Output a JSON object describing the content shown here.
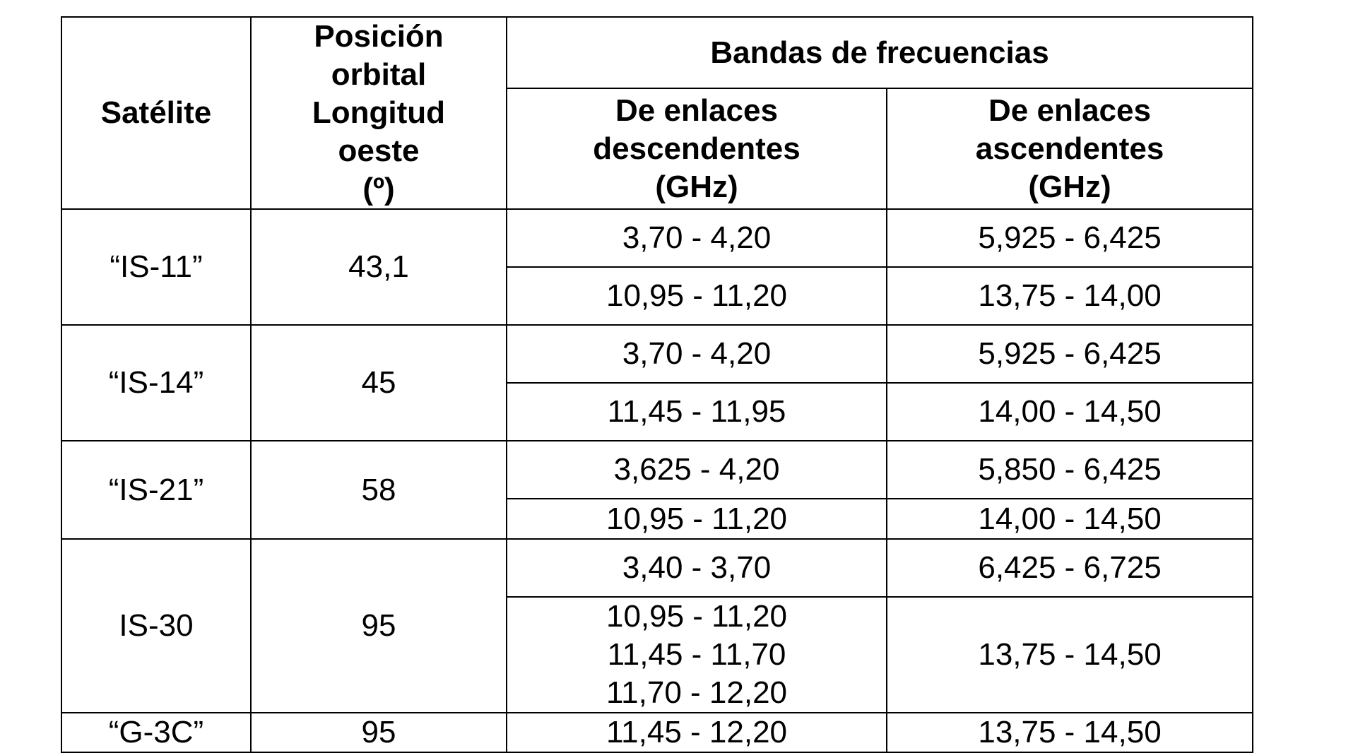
{
  "headers": {
    "satellite": "Satélite",
    "position": "Posición\norbital\nLongitud\noeste\n(º)",
    "bands": "Bandas de frecuencias",
    "downlink": "De enlaces\ndescendentes\n(GHz)",
    "uplink": "De enlaces\nascendentes\n(GHz)"
  },
  "rows": [
    {
      "satellite": "“IS-11”",
      "position": "43,1",
      "bands": [
        {
          "down": "3,70 - 4,20",
          "up": "5,925 - 6,425"
        },
        {
          "down": "10,95 - 11,20",
          "up": "13,75 - 14,00"
        }
      ]
    },
    {
      "satellite": "“IS-14”",
      "position": "45",
      "bands": [
        {
          "down": "3,70 - 4,20",
          "up": "5,925 - 6,425"
        },
        {
          "down": "11,45 - 11,95",
          "up": "14,00 - 14,50"
        }
      ]
    },
    {
      "satellite": "“IS-21”",
      "position": "58",
      "bands": [
        {
          "down": "3,625 - 4,20",
          "up": "5,850 - 6,425"
        },
        {
          "down": "10,95 - 11,20",
          "up": "14,00 - 14,50"
        }
      ]
    },
    {
      "satellite": "IS-30",
      "position": "95",
      "bands": [
        {
          "down": "3,40 - 3,70",
          "up": "6,425 - 6,725"
        },
        {
          "down": "10,95 - 11,20\n11,45 - 11,70\n11,70 - 12,20",
          "up": "13,75 - 14,50"
        }
      ]
    },
    {
      "satellite": "“G-3C”",
      "position": "95",
      "bands": [
        {
          "down": "11,45 - 12,20",
          "up": "13,75 - 14,50"
        }
      ]
    }
  ]
}
